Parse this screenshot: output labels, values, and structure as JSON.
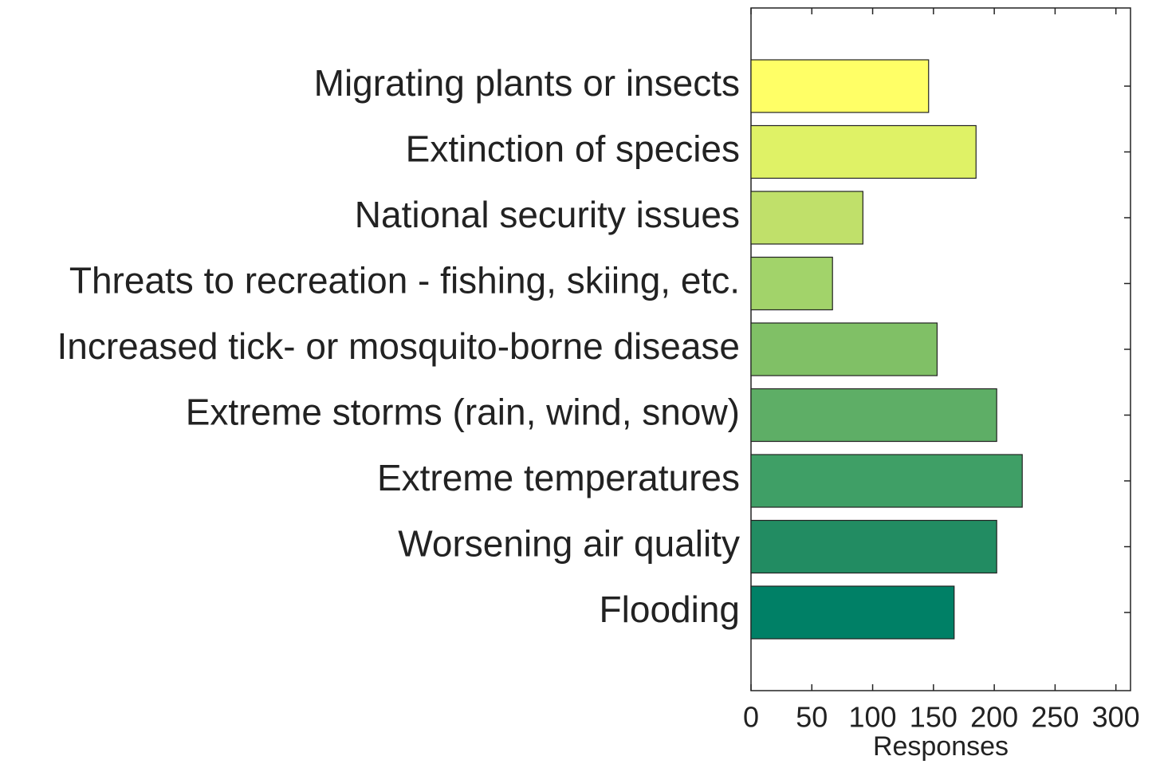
{
  "chart_data": {
    "type": "bar",
    "orientation": "horizontal",
    "categories": [
      "Migrating plants or insects",
      "Extinction of species",
      "National security issues",
      "Threats to recreation - fishing, skiing, etc.",
      "Increased tick- or mosquito-borne disease",
      "Extreme storms (rain, wind, snow)",
      "Extreme temperatures",
      "Worsening air quality",
      "Flooding"
    ],
    "values": [
      146,
      185,
      92,
      67,
      153,
      202,
      223,
      202,
      167
    ],
    "colors": [
      "#ffff66",
      "#dff266",
      "#c0e06a",
      "#a2d36a",
      "#80c066",
      "#5eae66",
      "#3f9f66",
      "#228c62",
      "#008066"
    ],
    "xlabel": "Responses",
    "xlim": [
      0,
      312
    ],
    "xticks": [
      0,
      50,
      100,
      150,
      200,
      250,
      300
    ],
    "grid": false
  }
}
